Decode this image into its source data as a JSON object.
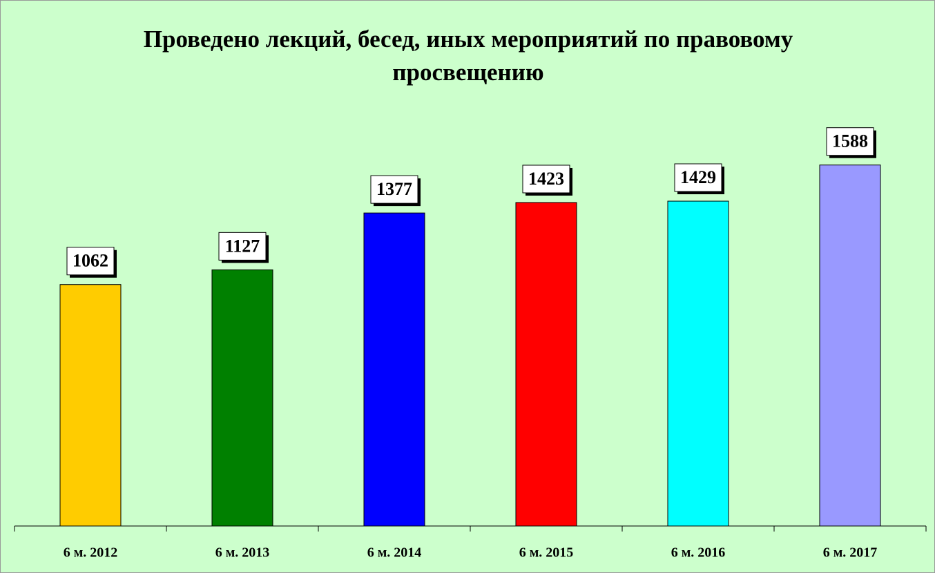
{
  "chart_data": {
    "type": "bar",
    "title": "Проведено лекций, бесед, иных мероприятий по правовому просвещению",
    "categories": [
      "6 м. 2012",
      "6 м. 2013",
      "6 м. 2014",
      "6 м. 2015",
      "6 м. 2016",
      "6 м. 2017"
    ],
    "values": [
      1062,
      1127,
      1377,
      1423,
      1429,
      1588
    ],
    "colors": [
      "#ffcc00",
      "#008000",
      "#0000ff",
      "#ff0000",
      "#00ffff",
      "#9999ff"
    ],
    "ylim": [
      0,
      1800
    ]
  }
}
